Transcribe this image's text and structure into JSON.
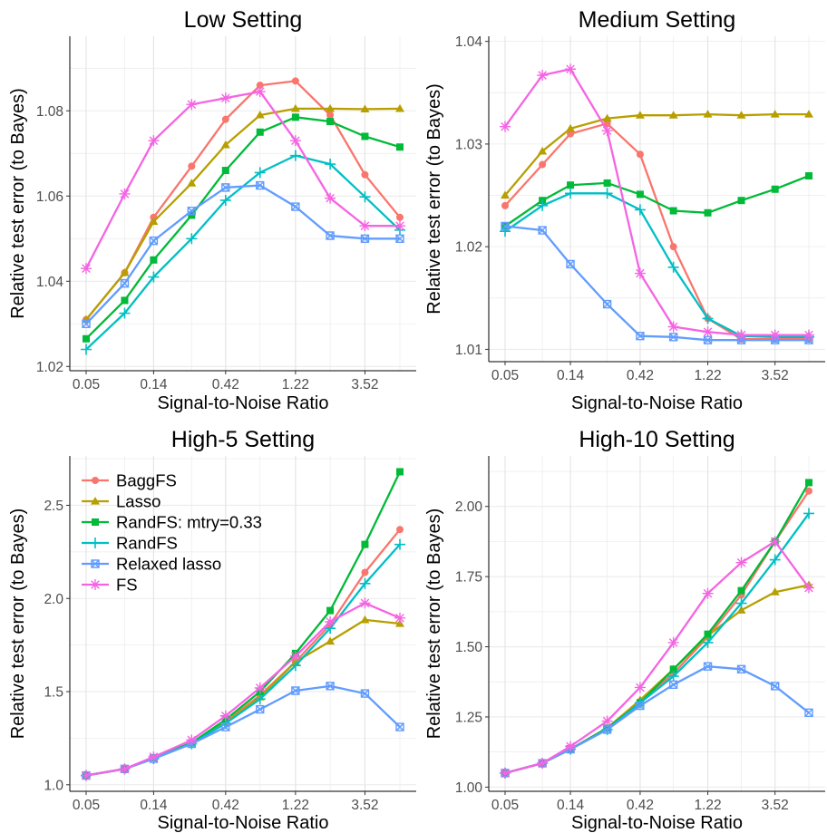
{
  "colors": {
    "BaggFS": "#F8766D",
    "Lasso": "#B79F00",
    "RandFS: mtry=0.33": "#00BA38",
    "RandFS": "#00BFC4",
    "Relaxed lasso": "#619CFF",
    "FS": "#F564E3"
  },
  "legend": {
    "placement": "top-left of High-5 Setting panel",
    "entries": [
      "BaggFS",
      "Lasso",
      "RandFS: mtry=0.33",
      "RandFS",
      "Relaxed lasso",
      "FS"
    ]
  },
  "chart_data": [
    {
      "type": "line",
      "title": "Low Setting",
      "xlabel": "Signal-to-Noise Ratio",
      "ylabel": "Relative test error (to Bayes)",
      "x_scale": "log",
      "x": [
        0.05,
        0.09,
        0.14,
        0.25,
        0.42,
        0.71,
        1.22,
        2.07,
        3.52,
        6.0
      ],
      "x_ticks": [
        "0.05",
        "0.14",
        "0.42",
        "1.22",
        "3.52"
      ],
      "y_ticks": [
        "1.02",
        "1.04",
        "1.06",
        "1.08"
      ],
      "ylim": [
        1.019,
        1.0975
      ],
      "grid": true,
      "series": [
        {
          "name": "BaggFS",
          "values": [
            1.031,
            1.042,
            1.055,
            1.067,
            1.078,
            1.086,
            1.087,
            1.079,
            1.065,
            1.055
          ]
        },
        {
          "name": "Lasso",
          "values": [
            1.031,
            1.042,
            1.054,
            1.063,
            1.072,
            1.079,
            1.0805,
            1.0805,
            1.0804,
            1.0805
          ]
        },
        {
          "name": "RandFS: mtry=0.33",
          "values": [
            1.0265,
            1.0355,
            1.045,
            1.0555,
            1.066,
            1.075,
            1.0785,
            1.0775,
            1.074,
            1.0715
          ]
        },
        {
          "name": "RandFS",
          "values": [
            1.024,
            1.0325,
            1.041,
            1.05,
            1.059,
            1.0655,
            1.0695,
            1.0675,
            1.0598,
            1.052
          ]
        },
        {
          "name": "Relaxed lasso",
          "values": [
            1.03,
            1.0395,
            1.0495,
            1.0565,
            1.062,
            1.0625,
            1.0575,
            1.0507,
            1.05,
            1.05
          ]
        },
        {
          "name": "FS",
          "values": [
            1.043,
            1.0605,
            1.073,
            1.0815,
            1.083,
            1.0845,
            1.073,
            1.0595,
            1.053,
            1.053
          ]
        }
      ]
    },
    {
      "type": "line",
      "title": "Medium Setting",
      "xlabel": "Signal-to-Noise Ratio",
      "ylabel": "Relative test error (to Bayes)",
      "x_scale": "log",
      "x": [
        0.05,
        0.09,
        0.14,
        0.25,
        0.42,
        0.71,
        1.22,
        2.07,
        3.52,
        6.0
      ],
      "x_ticks": [
        "0.05",
        "0.14",
        "0.42",
        "1.22",
        "3.52"
      ],
      "y_ticks": [
        "1.01",
        "1.02",
        "1.03",
        "1.04"
      ],
      "ylim": [
        1.0088,
        1.0405
      ],
      "grid": true,
      "series": [
        {
          "name": "BaggFS",
          "values": [
            1.024,
            1.028,
            1.031,
            1.032,
            1.029,
            1.02,
            1.013,
            1.011,
            1.011,
            1.011
          ]
        },
        {
          "name": "Lasso",
          "values": [
            1.025,
            1.0293,
            1.0315,
            1.0325,
            1.0328,
            1.0328,
            1.0329,
            1.0328,
            1.0329,
            1.0329
          ]
        },
        {
          "name": "RandFS: mtry=0.33",
          "values": [
            1.022,
            1.0245,
            1.026,
            1.0262,
            1.0251,
            1.0235,
            1.0233,
            1.0245,
            1.0256,
            1.0269
          ]
        },
        {
          "name": "RandFS",
          "values": [
            1.0215,
            1.024,
            1.0252,
            1.0252,
            1.0236,
            1.018,
            1.013,
            1.0113,
            1.0112,
            1.0112
          ]
        },
        {
          "name": "Relaxed lasso",
          "values": [
            1.022,
            1.0216,
            1.0183,
            1.0144,
            1.0113,
            1.0112,
            1.0109,
            1.0109,
            1.0109,
            1.0109
          ]
        },
        {
          "name": "FS",
          "values": [
            1.0317,
            1.0367,
            1.0373,
            1.0313,
            1.0174,
            1.0122,
            1.0117,
            1.0114,
            1.0114,
            1.0114
          ]
        }
      ]
    },
    {
      "type": "line",
      "title": "High-5 Setting",
      "xlabel": "Signal-to-Noise Ratio",
      "ylabel": "Relative test error (to Bayes)",
      "x_scale": "log",
      "x": [
        0.05,
        0.09,
        0.14,
        0.25,
        0.42,
        0.71,
        1.22,
        2.07,
        3.52,
        6.0
      ],
      "x_ticks": [
        "0.05",
        "0.14",
        "0.42",
        "1.22",
        "3.52"
      ],
      "y_ticks": [
        "1.0",
        "1.5",
        "2.0",
        "2.5"
      ],
      "ylim": [
        0.965,
        2.765
      ],
      "grid": true,
      "series": [
        {
          "name": "BaggFS",
          "values": [
            1.05,
            1.085,
            1.145,
            1.225,
            1.34,
            1.48,
            1.66,
            1.86,
            2.14,
            2.37
          ]
        },
        {
          "name": "Lasso",
          "values": [
            1.05,
            1.085,
            1.145,
            1.225,
            1.335,
            1.47,
            1.66,
            1.77,
            1.885,
            1.865
          ]
        },
        {
          "name": "RandFS: mtry=0.33",
          "values": [
            1.05,
            1.085,
            1.145,
            1.225,
            1.35,
            1.5,
            1.705,
            1.935,
            2.29,
            2.68
          ]
        },
        {
          "name": "RandFS",
          "values": [
            1.05,
            1.085,
            1.14,
            1.22,
            1.33,
            1.46,
            1.64,
            1.84,
            2.08,
            2.29
          ]
        },
        {
          "name": "Relaxed lasso",
          "values": [
            1.05,
            1.085,
            1.14,
            1.22,
            1.31,
            1.405,
            1.505,
            1.53,
            1.49,
            1.31
          ]
        },
        {
          "name": "FS",
          "values": [
            1.05,
            1.085,
            1.15,
            1.24,
            1.37,
            1.52,
            1.69,
            1.875,
            1.975,
            1.895
          ]
        }
      ]
    },
    {
      "type": "line",
      "title": "High-10 Setting",
      "xlabel": "Signal-to-Noise Ratio",
      "ylabel": "Relative test error (to Bayes)",
      "x_scale": "log",
      "x": [
        0.05,
        0.09,
        0.14,
        0.25,
        0.42,
        0.71,
        1.22,
        2.07,
        3.52,
        6.0
      ],
      "x_ticks": [
        "0.05",
        "0.14",
        "0.42",
        "1.22",
        "3.52"
      ],
      "y_ticks": [
        "1.00",
        "1.25",
        "1.50",
        "1.75",
        "2.00"
      ],
      "ylim": [
        0.985,
        2.18
      ],
      "grid": true,
      "series": [
        {
          "name": "BaggFS",
          "values": [
            1.05,
            1.085,
            1.135,
            1.21,
            1.305,
            1.405,
            1.535,
            1.685,
            1.875,
            2.055
          ]
        },
        {
          "name": "Lasso",
          "values": [
            1.05,
            1.085,
            1.135,
            1.21,
            1.31,
            1.42,
            1.54,
            1.63,
            1.695,
            1.72
          ]
        },
        {
          "name": "RandFS: mtry=0.33",
          "values": [
            1.05,
            1.085,
            1.135,
            1.21,
            1.3,
            1.42,
            1.545,
            1.7,
            1.875,
            2.085
          ]
        },
        {
          "name": "RandFS",
          "values": [
            1.05,
            1.085,
            1.135,
            1.205,
            1.3,
            1.395,
            1.515,
            1.655,
            1.81,
            1.975
          ]
        },
        {
          "name": "Relaxed lasso",
          "values": [
            1.05,
            1.085,
            1.135,
            1.205,
            1.29,
            1.365,
            1.43,
            1.42,
            1.36,
            1.265
          ]
        },
        {
          "name": "FS",
          "values": [
            1.05,
            1.085,
            1.145,
            1.235,
            1.355,
            1.515,
            1.69,
            1.8,
            1.875,
            1.71
          ]
        }
      ]
    }
  ]
}
